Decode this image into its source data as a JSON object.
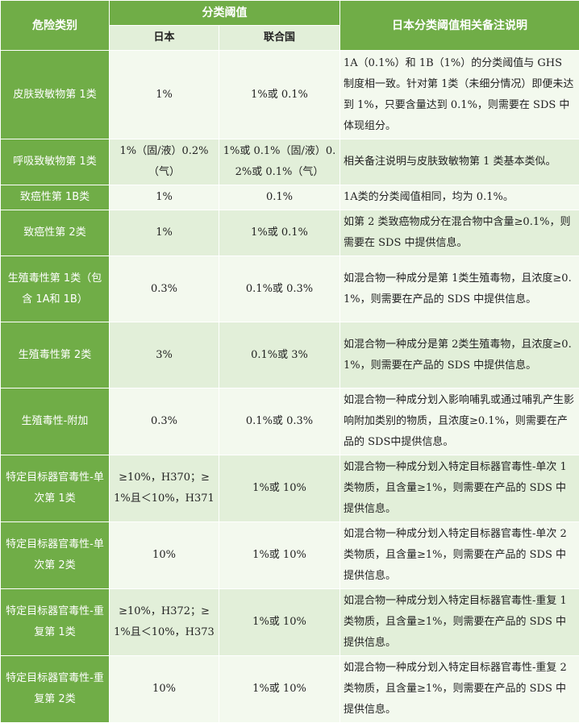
{
  "header": {
    "category": "危险类别",
    "threshold": "分类阈值",
    "japan": "日本",
    "un": "联合国",
    "notes": "日本分类阈值相关备注说明"
  },
  "rows": [
    {
      "category": "皮肤致敏物第 1类",
      "japan": "1%",
      "un": "1%或 0.1%",
      "note": "1A（0.1%）和 1B（1%）的分类阈值与 GHS 制度相一致。针对第 1类（未细分情况）即便未达到 1%，只要含量达到 0.1%，则需要在 SDS 中体现组分。"
    },
    {
      "category": "呼吸致敏物第 1类",
      "japan": "1%（固/液）0.2%（气）",
      "un": "1%或 0.1%（固/液）0.2%或 0.1%（气）",
      "note": "相关备注说明与皮肤致敏物第 1 类基本类似。"
    },
    {
      "category": "致癌性第 1B类",
      "japan": "1%",
      "un": "0.1%",
      "note": "1A类的分类阈值相同，均为 0.1%。"
    },
    {
      "category": "致癌性第 2类",
      "japan": "1%",
      "un": "1%或 0.1%",
      "note": "如第 2 类致癌物成分在混合物中含量≥0.1%，则需要在 SDS 中提供信息。"
    },
    {
      "category": "生殖毒性第 1类（包含 1A和 1B）",
      "japan": "0.3%",
      "un": "0.1%或 0.3%",
      "note": "如混合物一种成分是第 1类生殖毒物，且浓度≥0.1%，则需要在产品的 SDS 中提供信息。"
    },
    {
      "category": "生殖毒性第 2类",
      "japan": "3%",
      "un": "0.1%或 3%",
      "note": "如混合物一种成分是第 2类生殖毒物，且浓度≥0.1%，则需要在产品的 SDS 中提供信息。"
    },
    {
      "category": "生殖毒性-附加",
      "japan": "0.3%",
      "un": "0.1%或 0.3%",
      "note": "如混合物一种成分划入影响哺乳或通过哺乳产生影响附加类别的物质，且浓度≥0.1%，则需要在产品的 SDS中提供信息。"
    },
    {
      "category": "特定目标器官毒性-单次第 1类",
      "japan": "≥10%，H370；≥1%且＜10%，H371",
      "un": "1%或 10%",
      "note": "如混合物一种成分划入特定目标器官毒性-单次 1 类物质，且含量≥1%，则需要在产品的 SDS 中提供信息。"
    },
    {
      "category": "特定目标器官毒性-单次第 2类",
      "japan": "10%",
      "un": "1%或 10%",
      "note": "如混合物一种成分划入特定目标器官毒性-单次 2 类物质，且含量≥1%，则需要在产品的 SDS 中提供信息。"
    },
    {
      "category": "特定目标器官毒性-重复第 1类",
      "japan": "≥10%，H372；≥1%且＜10%，H373",
      "un": "1%或 10%",
      "note": "如混合物一种成分划入特定目标器官毒性-重复 1 类物质，且含量≥1%，则需要在产品的 SDS 中提供信息。"
    },
    {
      "category": "特定目标器官毒性-重复第 2类",
      "japan": "10%",
      "un": "1%或 10%",
      "note": "如混合物一种成分划入特定目标器官毒性-重复 2 类物质，且含量≥1%，则需要在产品的 SDS 中提供信息。"
    }
  ]
}
